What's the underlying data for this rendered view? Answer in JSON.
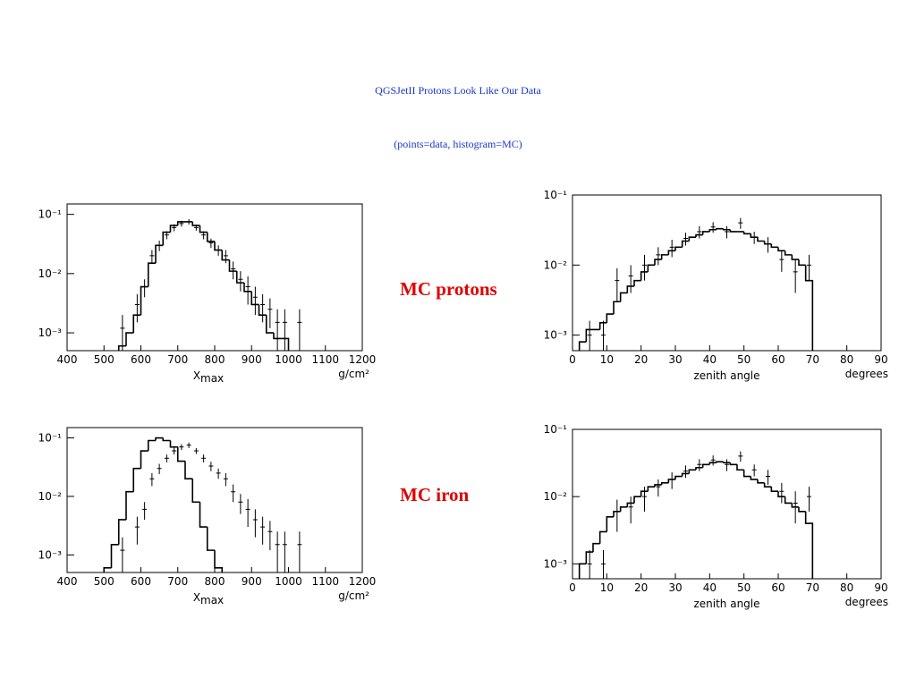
{
  "title": "QGSJetII Protons Look Like Our Data",
  "subtitle": "(points=data, histogram=MC)",
  "annotations": [
    "MC protons",
    "MC iron"
  ],
  "chart_data": [
    {
      "type": "histogram",
      "log_y": true,
      "xlabel": "X",
      "xlabel_sub": "max",
      "xunit": "g/cm²",
      "xlim": [
        400,
        1200
      ],
      "xticks": [
        400,
        500,
        600,
        700,
        800,
        900,
        1000,
        1100,
        1200
      ],
      "ylim": [
        0.0005,
        0.15
      ],
      "yticks": [
        {
          "value": 0.001,
          "label": "10⁻³"
        },
        {
          "value": 0.01,
          "label": "10⁻²"
        },
        {
          "value": 0.1,
          "label": "10⁻¹"
        }
      ],
      "histogram": {
        "color": "#000000",
        "bins": [
          540,
          560,
          580,
          600,
          620,
          640,
          660,
          680,
          700,
          720,
          740,
          760,
          780,
          800,
          820,
          840,
          860,
          880,
          900,
          920,
          940,
          960,
          980,
          1000
        ],
        "counts": [
          0.0006,
          0.001,
          0.002,
          0.006,
          0.015,
          0.03,
          0.05,
          0.065,
          0.075,
          0.075,
          0.065,
          0.05,
          0.035,
          0.025,
          0.017,
          0.011,
          0.007,
          0.005,
          0.003,
          0.002,
          0.001,
          0.0008,
          0.0008
        ]
      },
      "points": {
        "color": "#000000",
        "x": [
          550,
          590,
          610,
          630,
          650,
          670,
          690,
          710,
          730,
          750,
          770,
          790,
          810,
          830,
          850,
          870,
          890,
          910,
          930,
          950,
          970,
          990,
          1030
        ],
        "values": [
          0.0012,
          0.003,
          0.006,
          0.02,
          0.03,
          0.045,
          0.06,
          0.07,
          0.075,
          0.06,
          0.045,
          0.033,
          0.025,
          0.02,
          0.012,
          0.008,
          0.006,
          0.004,
          0.003,
          0.0025,
          0.0015,
          0.0015,
          0.0015
        ],
        "errors": [
          0.0008,
          0.0015,
          0.002,
          0.005,
          0.006,
          0.007,
          0.008,
          0.008,
          0.008,
          0.007,
          0.007,
          0.006,
          0.005,
          0.005,
          0.004,
          0.003,
          0.003,
          0.002,
          0.0015,
          0.0013,
          0.001,
          0.001,
          0.001
        ]
      }
    },
    {
      "type": "histogram",
      "log_y": true,
      "xlabel": "zenith angle",
      "xunit": "degrees",
      "xlim": [
        0,
        90
      ],
      "xticks": [
        0,
        10,
        20,
        30,
        40,
        50,
        60,
        70,
        80,
        90
      ],
      "ylim": [
        0.0006,
        0.1
      ],
      "yticks": [
        {
          "value": 0.001,
          "label": "10⁻³"
        },
        {
          "value": 0.01,
          "label": "10⁻²"
        },
        {
          "value": 0.1,
          "label": "10⁻¹"
        }
      ],
      "histogram": {
        "color": "#000000",
        "bins": [
          2,
          4,
          6,
          8,
          10,
          12,
          14,
          16,
          18,
          20,
          22,
          24,
          26,
          28,
          30,
          32,
          34,
          36,
          38,
          40,
          42,
          44,
          46,
          48,
          50,
          52,
          54,
          56,
          58,
          60,
          62,
          64,
          66,
          68,
          70
        ],
        "counts": [
          0.0008,
          0.0012,
          0.0012,
          0.0015,
          0.002,
          0.003,
          0.004,
          0.005,
          0.006,
          0.008,
          0.01,
          0.012,
          0.014,
          0.016,
          0.018,
          0.022,
          0.025,
          0.027,
          0.03,
          0.032,
          0.033,
          0.032,
          0.03,
          0.03,
          0.028,
          0.025,
          0.022,
          0.02,
          0.018,
          0.016,
          0.014,
          0.012,
          0.01,
          0.006
        ]
      },
      "points": {
        "color": "#000000",
        "x": [
          5,
          9,
          13,
          17,
          21,
          25,
          29,
          33,
          37,
          41,
          45,
          49,
          53,
          57,
          61,
          65,
          69
        ],
        "values": [
          0.001,
          0.001,
          0.006,
          0.007,
          0.01,
          0.014,
          0.018,
          0.024,
          0.03,
          0.035,
          0.03,
          0.04,
          0.025,
          0.02,
          0.012,
          0.008,
          0.01
        ],
        "errors": [
          0.0006,
          0.0006,
          0.003,
          0.003,
          0.004,
          0.004,
          0.005,
          0.005,
          0.006,
          0.006,
          0.006,
          0.007,
          0.005,
          0.005,
          0.004,
          0.004,
          0.004
        ]
      }
    },
    {
      "type": "histogram",
      "log_y": true,
      "xlabel": "X",
      "xlabel_sub": "max",
      "xunit": "g/cm²",
      "xlim": [
        400,
        1200
      ],
      "xticks": [
        400,
        500,
        600,
        700,
        800,
        900,
        1000,
        1100,
        1200
      ],
      "ylim": [
        0.0005,
        0.15
      ],
      "yticks": [
        {
          "value": 0.001,
          "label": "10⁻³"
        },
        {
          "value": 0.01,
          "label": "10⁻²"
        },
        {
          "value": 0.1,
          "label": "10⁻¹"
        }
      ],
      "histogram": {
        "color": "#000000",
        "bins": [
          500,
          520,
          540,
          560,
          580,
          600,
          620,
          640,
          660,
          680,
          700,
          720,
          740,
          760,
          780,
          800,
          820
        ],
        "counts": [
          0.0006,
          0.0015,
          0.004,
          0.012,
          0.03,
          0.06,
          0.09,
          0.1,
          0.09,
          0.07,
          0.04,
          0.02,
          0.008,
          0.003,
          0.0012,
          0.0006
        ]
      },
      "points": {
        "color": "#000000",
        "x": [
          550,
          590,
          610,
          630,
          650,
          670,
          690,
          710,
          730,
          750,
          770,
          790,
          810,
          830,
          850,
          870,
          890,
          910,
          930,
          950,
          970,
          990,
          1030
        ],
        "values": [
          0.0012,
          0.003,
          0.006,
          0.02,
          0.03,
          0.045,
          0.06,
          0.07,
          0.075,
          0.06,
          0.045,
          0.033,
          0.025,
          0.02,
          0.012,
          0.008,
          0.006,
          0.004,
          0.003,
          0.0025,
          0.0015,
          0.0015,
          0.0015
        ],
        "errors": [
          0.0008,
          0.0015,
          0.002,
          0.005,
          0.006,
          0.007,
          0.008,
          0.008,
          0.008,
          0.007,
          0.007,
          0.006,
          0.005,
          0.005,
          0.004,
          0.003,
          0.003,
          0.002,
          0.0015,
          0.0013,
          0.001,
          0.001,
          0.001
        ]
      }
    },
    {
      "type": "histogram",
      "log_y": true,
      "xlabel": "zenith angle",
      "xunit": "degrees",
      "xlim": [
        0,
        90
      ],
      "xticks": [
        0,
        10,
        20,
        30,
        40,
        50,
        60,
        70,
        80,
        90
      ],
      "ylim": [
        0.0006,
        0.1
      ],
      "yticks": [
        {
          "value": 0.001,
          "label": "10⁻³"
        },
        {
          "value": 0.01,
          "label": "10⁻²"
        },
        {
          "value": 0.1,
          "label": "10⁻¹"
        }
      ],
      "histogram": {
        "color": "#000000",
        "bins": [
          2,
          4,
          6,
          8,
          10,
          12,
          14,
          16,
          18,
          20,
          22,
          24,
          26,
          28,
          30,
          32,
          34,
          36,
          38,
          40,
          42,
          44,
          46,
          48,
          50,
          52,
          54,
          56,
          58,
          60,
          62,
          64,
          66,
          68,
          70
        ],
        "counts": [
          0.001,
          0.0015,
          0.002,
          0.003,
          0.005,
          0.006,
          0.007,
          0.008,
          0.01,
          0.012,
          0.014,
          0.015,
          0.016,
          0.018,
          0.02,
          0.022,
          0.025,
          0.027,
          0.03,
          0.032,
          0.033,
          0.032,
          0.03,
          0.025,
          0.02,
          0.018,
          0.016,
          0.014,
          0.012,
          0.01,
          0.008,
          0.007,
          0.006,
          0.004
        ]
      },
      "points": {
        "color": "#000000",
        "x": [
          5,
          9,
          13,
          17,
          21,
          25,
          29,
          33,
          37,
          41,
          45,
          49,
          53,
          57,
          61,
          65,
          69
        ],
        "values": [
          0.001,
          0.001,
          0.006,
          0.007,
          0.01,
          0.014,
          0.018,
          0.024,
          0.03,
          0.035,
          0.03,
          0.04,
          0.025,
          0.02,
          0.012,
          0.008,
          0.01
        ],
        "errors": [
          0.0006,
          0.0006,
          0.003,
          0.003,
          0.004,
          0.004,
          0.005,
          0.005,
          0.006,
          0.006,
          0.006,
          0.007,
          0.005,
          0.005,
          0.004,
          0.004,
          0.004
        ]
      }
    }
  ]
}
